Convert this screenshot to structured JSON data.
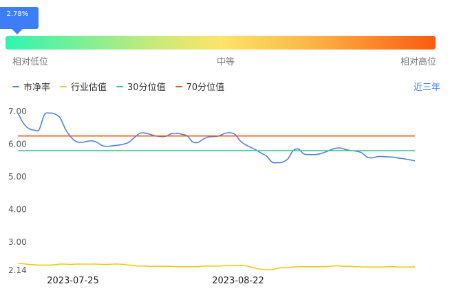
{
  "indicator": {
    "percentile_label": "2.78%",
    "percentile": 0.0278,
    "low_label": "相对低位",
    "mid_label": "中等",
    "high_label": "相对高位"
  },
  "legend": {
    "items": [
      {
        "label": "市净率",
        "color": "#4a7ff0"
      },
      {
        "label": "行业估值",
        "color": "#f5c518"
      },
      {
        "label": "30分位值",
        "color": "#21d48c"
      },
      {
        "label": "70分位值",
        "color": "#f25a14"
      }
    ],
    "range_label": "近三年"
  },
  "chart_data": {
    "type": "line",
    "title": "",
    "xlabel": "",
    "ylabel": "",
    "ylim": [
      2.14,
      7.0
    ],
    "yticks": [
      "7.00",
      "6.00",
      "5.00",
      "4.00",
      "3.00",
      "2.14"
    ],
    "xticks": [
      "2023-07-25",
      "2023-08-22"
    ],
    "grid": false,
    "series": [
      {
        "name": "市净率",
        "color": "#4a7ff0",
        "values": [
          6.95,
          6.65,
          6.48,
          6.43,
          6.44,
          6.9,
          6.95,
          6.92,
          6.8,
          6.45,
          6.22,
          6.08,
          6.05,
          6.08,
          6.1,
          6.05,
          5.95,
          5.93,
          5.95,
          5.97,
          6.0,
          6.06,
          6.2,
          6.33,
          6.34,
          6.3,
          6.25,
          6.23,
          6.24,
          6.32,
          6.33,
          6.3,
          6.25,
          6.07,
          6.05,
          6.15,
          6.22,
          6.23,
          6.25,
          6.32,
          6.35,
          6.3,
          6.1,
          5.98,
          5.9,
          5.82,
          5.72,
          5.63,
          5.45,
          5.43,
          5.45,
          5.55,
          5.8,
          5.85,
          5.7,
          5.68,
          5.68,
          5.7,
          5.75,
          5.82,
          5.87,
          5.88,
          5.83,
          5.8,
          5.78,
          5.73,
          5.6,
          5.58,
          5.62,
          5.62,
          5.61,
          5.6,
          5.57,
          5.55,
          5.52,
          5.49
        ]
      },
      {
        "name": "行业估值",
        "color": "#f5c518",
        "values": [
          2.36,
          2.34,
          2.32,
          2.31,
          2.3,
          2.3,
          2.3,
          2.31,
          2.33,
          2.33,
          2.32,
          2.33,
          2.33,
          2.33,
          2.33,
          2.33,
          2.32,
          2.32,
          2.33,
          2.33,
          2.32,
          2.3,
          2.28,
          2.27,
          2.27,
          2.26,
          2.26,
          2.26,
          2.26,
          2.26,
          2.25,
          2.25,
          2.25,
          2.25,
          2.25,
          2.27,
          2.27,
          2.27,
          2.27,
          2.28,
          2.28,
          2.29,
          2.29,
          2.28,
          2.24,
          2.2,
          2.17,
          2.16,
          2.16,
          2.2,
          2.22,
          2.23,
          2.24,
          2.25,
          2.25,
          2.25,
          2.25,
          2.25,
          2.25,
          2.26,
          2.28,
          2.27,
          2.26,
          2.26,
          2.25,
          2.24,
          2.24,
          2.24,
          2.24,
          2.24,
          2.25,
          2.25,
          2.24,
          2.24,
          2.24,
          2.25
        ]
      },
      {
        "name": "30分位值",
        "color": "#21d48c",
        "constant": 5.8
      },
      {
        "name": "70分位值",
        "color": "#f25a14",
        "constant": 6.25
      }
    ]
  }
}
